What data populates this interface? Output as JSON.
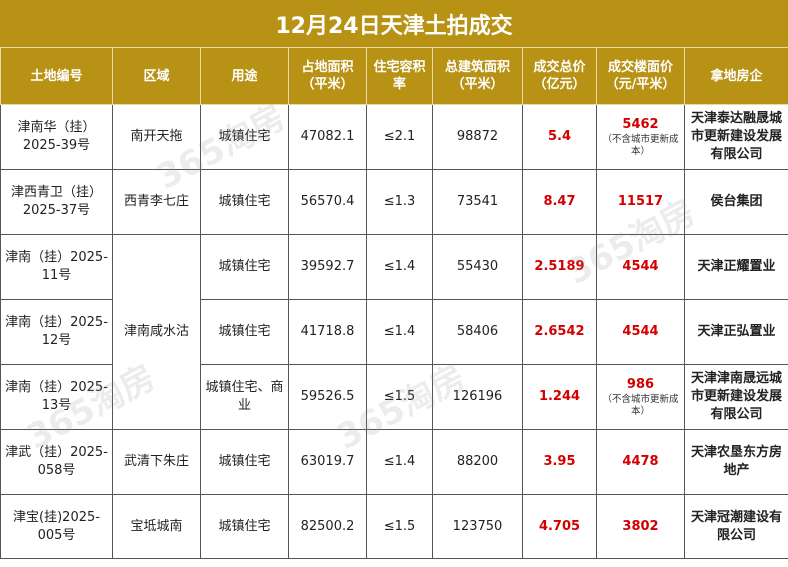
{
  "title": "12月24日天津土拍成交",
  "headers": {
    "lot": "土地编号",
    "district": "区域",
    "use": "用途",
    "area": "占地面积（平米）",
    "far": "住宅容积率",
    "gfa": "总建筑面积（平米）",
    "price": "成交总价（亿元）",
    "floor_price": "成交楼面价（元/平米）",
    "winner": "拿地房企"
  },
  "rows": [
    {
      "lot": "津南华（挂）2025-39号",
      "district": "南开天拖",
      "use": "城镇住宅",
      "area": "47082.1",
      "far": "≤2.1",
      "gfa": "98872",
      "price": "5.4",
      "floor_price": "5462",
      "floor_note": "（不含城市更新成本）",
      "winner": "天津泰达融晟城市更新建设发展有限公司"
    },
    {
      "lot": "津西青卫（挂）2025-37号",
      "district": "西青李七庄",
      "use": "城镇住宅",
      "area": "56570.4",
      "far": "≤1.3",
      "gfa": "73541",
      "price": "8.47",
      "floor_price": "11517",
      "floor_note": "",
      "winner": "侯台集团"
    },
    {
      "lot": "津南（挂）2025-11号",
      "district": "津南咸水沽",
      "use": "城镇住宅",
      "area": "39592.7",
      "far": "≤1.4",
      "gfa": "55430",
      "price": "2.5189",
      "floor_price": "4544",
      "floor_note": "",
      "winner": "天津正耀置业"
    },
    {
      "lot": "津南（挂）2025-12号",
      "district": "",
      "use": "城镇住宅",
      "area": "41718.8",
      "far": "≤1.4",
      "gfa": "58406",
      "price": "2.6542",
      "floor_price": "4544",
      "floor_note": "",
      "winner": "天津正弘置业"
    },
    {
      "lot": "津南（挂）2025-13号",
      "district": "",
      "use": "城镇住宅、商业",
      "area": "59526.5",
      "far": "≤1.5",
      "gfa": "126196",
      "price": "1.244",
      "floor_price": "986",
      "floor_note": "（不含城市更新成本）",
      "winner": "天津津南晟远城市更新建设发展有限公司"
    },
    {
      "lot": "津武（挂）2025-058号",
      "district": "武清下朱庄",
      "use": "城镇住宅",
      "area": "63019.7",
      "far": "≤1.4",
      "gfa": "88200",
      "price": "3.95",
      "floor_price": "4478",
      "floor_note": "",
      "winner": "天津农垦东方房地产"
    },
    {
      "lot": "津宝(挂)2025-005号",
      "district": "宝坻城南",
      "use": "城镇住宅",
      "area": "82500.2",
      "far": "≤1.5",
      "gfa": "123750",
      "price": "4.705",
      "floor_price": "3802",
      "floor_note": "",
      "winner": "天津冠潮建设有限公司"
    }
  ],
  "watermark": "365淘房",
  "colors": {
    "header_bg": "#b89214",
    "header_text": "#ffffff",
    "accent_red": "#d40000"
  }
}
